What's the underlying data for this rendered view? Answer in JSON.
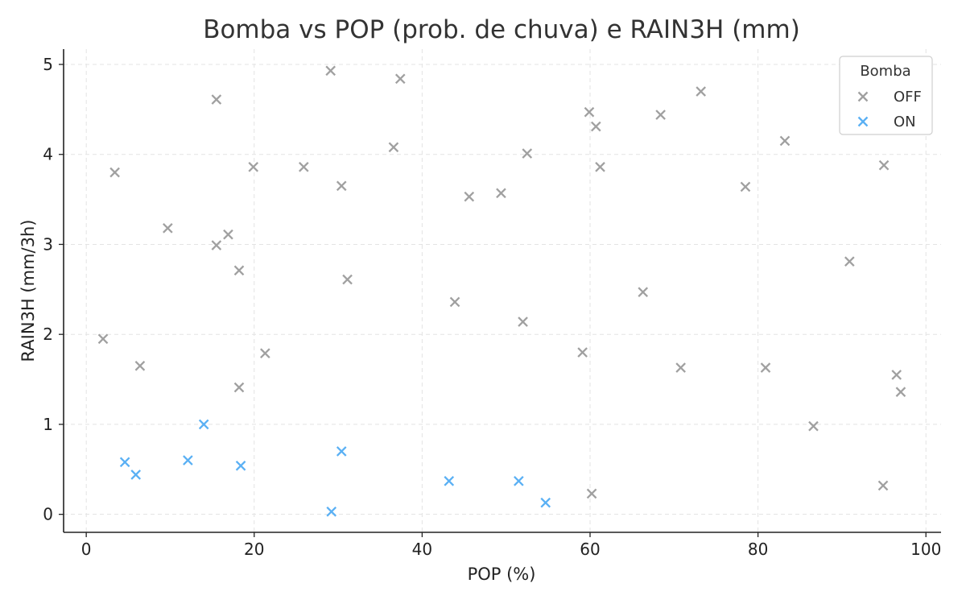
{
  "chart_data": {
    "type": "scatter",
    "title": "Bomba vs POP (prob. de chuva) e RAIN3H (mm)",
    "xlabel": "POP (%)",
    "ylabel": "RAIN3H (mm/3h)",
    "xlim": [
      -2.7,
      101.8
    ],
    "ylim": [
      -0.2,
      5.17
    ],
    "xticks": [
      0,
      20,
      40,
      60,
      80,
      100
    ],
    "yticks": [
      0,
      1,
      2,
      3,
      4,
      5
    ],
    "grid": true,
    "marker": "x",
    "legend": {
      "title": "Bomba",
      "placement": "top-right"
    },
    "series": [
      {
        "name": "OFF",
        "color": "#a0a0a0",
        "points": [
          [
            2.0,
            1.95
          ],
          [
            3.4,
            3.8
          ],
          [
            6.4,
            1.65
          ],
          [
            9.7,
            3.18
          ],
          [
            15.5,
            4.61
          ],
          [
            15.5,
            2.99
          ],
          [
            16.9,
            3.11
          ],
          [
            18.2,
            2.71
          ],
          [
            18.2,
            1.41
          ],
          [
            19.9,
            3.86
          ],
          [
            21.3,
            1.79
          ],
          [
            25.9,
            3.86
          ],
          [
            29.1,
            4.93
          ],
          [
            30.4,
            3.65
          ],
          [
            31.1,
            2.61
          ],
          [
            36.6,
            4.08
          ],
          [
            37.4,
            4.84
          ],
          [
            43.9,
            2.36
          ],
          [
            45.6,
            3.53
          ],
          [
            49.4,
            3.57
          ],
          [
            52.0,
            2.14
          ],
          [
            52.5,
            4.01
          ],
          [
            59.1,
            1.8
          ],
          [
            59.9,
            4.47
          ],
          [
            60.2,
            0.23
          ],
          [
            60.7,
            4.31
          ],
          [
            61.2,
            3.86
          ],
          [
            66.3,
            2.47
          ],
          [
            68.4,
            4.44
          ],
          [
            70.8,
            1.63
          ],
          [
            73.2,
            4.7
          ],
          [
            78.5,
            3.64
          ],
          [
            80.9,
            1.63
          ],
          [
            83.2,
            4.15
          ],
          [
            86.6,
            0.98
          ],
          [
            90.9,
            2.81
          ],
          [
            94.9,
            0.32
          ],
          [
            95.0,
            3.88
          ],
          [
            96.5,
            1.55
          ],
          [
            97.0,
            1.36
          ]
        ]
      },
      {
        "name": "ON",
        "color": "#5ab0f4",
        "points": [
          [
            4.6,
            0.58
          ],
          [
            5.9,
            0.44
          ],
          [
            12.1,
            0.6
          ],
          [
            14.0,
            1.0
          ],
          [
            18.4,
            0.54
          ],
          [
            29.2,
            0.03
          ],
          [
            30.4,
            0.7
          ],
          [
            43.2,
            0.37
          ],
          [
            51.5,
            0.37
          ],
          [
            54.7,
            0.13
          ]
        ]
      }
    ]
  }
}
